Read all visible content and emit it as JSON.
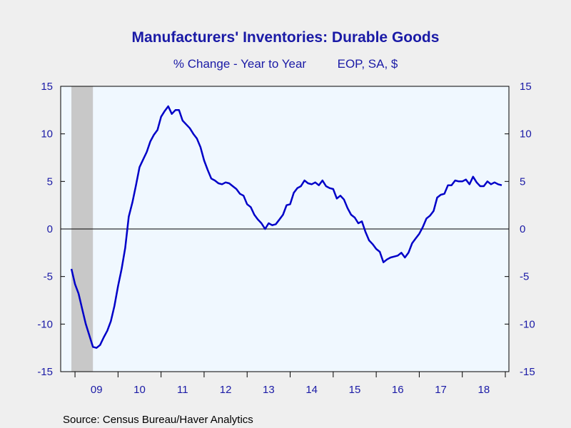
{
  "chart_data": {
    "type": "line",
    "title": "Manufacturers' Inventories: Durable Goods",
    "subtitle": "% Change - Year to Year",
    "subtitle_right": "EOP, SA, $",
    "source": "Source:  Census Bureau/Haver Analytics",
    "ylim": [
      -15,
      15
    ],
    "yticks": [
      "15",
      "10",
      "5",
      "0",
      "-5",
      "-10",
      "-15"
    ],
    "xtick_labels": [
      "09",
      "10",
      "11",
      "12",
      "13",
      "14",
      "15",
      "16",
      "17",
      "18"
    ],
    "recession_shading": {
      "from": "2008-12",
      "to": "2009-06"
    },
    "series": [
      {
        "color": "#0000c8",
        "x": [
          "2008-12",
          "2009-01",
          "2009-02",
          "2009-03",
          "2009-04",
          "2009-05",
          "2009-06",
          "2009-07",
          "2009-08",
          "2009-09",
          "2009-10",
          "2009-11",
          "2009-12",
          "2010-01",
          "2010-02",
          "2010-03",
          "2010-04",
          "2010-05",
          "2010-06",
          "2010-07",
          "2010-08",
          "2010-09",
          "2010-10",
          "2010-11",
          "2010-12",
          "2011-01",
          "2011-02",
          "2011-03",
          "2011-04",
          "2011-05",
          "2011-06",
          "2011-07",
          "2011-08",
          "2011-09",
          "2011-10",
          "2011-11",
          "2011-12",
          "2012-01",
          "2012-02",
          "2012-03",
          "2012-04",
          "2012-05",
          "2012-06",
          "2012-07",
          "2012-08",
          "2012-09",
          "2012-10",
          "2012-11",
          "2012-12",
          "2013-01",
          "2013-02",
          "2013-03",
          "2013-04",
          "2013-05",
          "2013-06",
          "2013-07",
          "2013-08",
          "2013-09",
          "2013-10",
          "2013-11",
          "2013-12",
          "2014-01",
          "2014-02",
          "2014-03",
          "2014-04",
          "2014-05",
          "2014-06",
          "2014-07",
          "2014-08",
          "2014-09",
          "2014-10",
          "2014-11",
          "2014-12",
          "2015-01",
          "2015-02",
          "2015-03",
          "2015-04",
          "2015-05",
          "2015-06",
          "2015-07",
          "2015-08",
          "2015-09",
          "2015-10",
          "2015-11",
          "2015-12",
          "2016-01",
          "2016-02",
          "2016-03",
          "2016-04",
          "2016-05",
          "2016-06",
          "2016-07",
          "2016-08",
          "2016-09",
          "2016-10",
          "2016-11",
          "2016-12",
          "2017-01",
          "2017-02",
          "2017-03",
          "2017-04",
          "2017-05",
          "2017-06",
          "2017-07",
          "2017-08",
          "2017-09",
          "2017-10",
          "2017-11",
          "2017-12",
          "2018-01",
          "2018-02",
          "2018-03",
          "2018-04",
          "2018-05",
          "2018-06",
          "2018-07",
          "2018-08",
          "2018-09",
          "2018-10",
          "2018-11",
          "2018-12"
        ],
        "values": [
          -4.2,
          -5.8,
          -6.8,
          -8.4,
          -10.0,
          -11.2,
          -12.4,
          -12.5,
          -12.2,
          -11.4,
          -10.7,
          -9.7,
          -8.1,
          -6.0,
          -4.2,
          -2.0,
          1.3,
          2.8,
          4.6,
          6.5,
          7.3,
          8.1,
          9.2,
          9.9,
          10.4,
          11.8,
          12.4,
          12.9,
          12.1,
          12.5,
          12.5,
          11.4,
          11.0,
          10.6,
          10.0,
          9.5,
          8.6,
          7.2,
          6.2,
          5.3,
          5.1,
          4.8,
          4.7,
          4.9,
          4.8,
          4.5,
          4.2,
          3.7,
          3.5,
          2.6,
          2.3,
          1.5,
          1.0,
          0.6,
          0.0,
          0.6,
          0.4,
          0.5,
          1.0,
          1.5,
          2.5,
          2.6,
          3.8,
          4.3,
          4.5,
          5.1,
          4.8,
          4.7,
          4.9,
          4.6,
          5.1,
          4.5,
          4.3,
          4.2,
          3.2,
          3.5,
          3.1,
          2.2,
          1.5,
          1.2,
          0.6,
          0.8,
          -0.3,
          -1.2,
          -1.6,
          -2.1,
          -2.4,
          -3.5,
          -3.2,
          -3.0,
          -2.9,
          -2.8,
          -2.5,
          -3.0,
          -2.5,
          -1.5,
          -1.0,
          -0.5,
          0.2,
          1.1,
          1.4,
          1.9,
          3.3,
          3.6,
          3.7,
          4.6,
          4.6,
          5.1,
          5.0,
          5.0,
          5.2,
          4.7,
          5.5,
          4.9,
          4.5,
          4.5,
          5.0,
          4.7,
          4.9,
          4.7,
          4.6
        ]
      }
    ]
  }
}
